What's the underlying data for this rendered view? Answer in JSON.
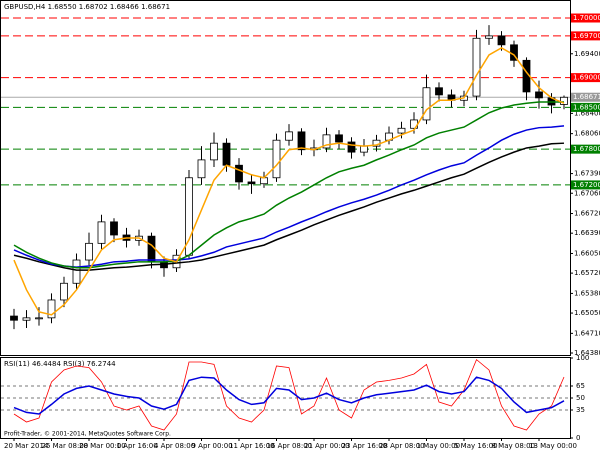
{
  "chart_data": [
    {
      "type": "candlestick",
      "title": "GBPUSD,H4  1.68550 1.68702 1.68466 1.68671",
      "footer": "Profit-Trader, © 2001-2014, MetaQuotes Software Corp.",
      "categories": [
        "20 Mar 2014",
        null,
        null,
        "25 Mar 08:00",
        null,
        null,
        "28 Mar 00:00",
        null,
        null,
        "1 Apr 16:00",
        null,
        null,
        "4 Apr 08:00",
        null,
        null,
        "9 Apr 00:00",
        null,
        null,
        "11 Apr 16:00",
        null,
        null,
        "16 Apr 08:00",
        null,
        null,
        "21 Apr 00:00",
        null,
        null,
        "23 Apr 16:00",
        null,
        null,
        "28 Apr 08:00",
        null,
        null,
        "1 May 00:00",
        null,
        null,
        "5 May 16:00",
        null,
        null,
        "8 May 08:00",
        null,
        null,
        "13 May 00:00",
        null,
        null
      ],
      "open": [
        1.65,
        1.6493,
        1.6497,
        1.6497,
        1.6527,
        1.6555,
        1.6594,
        1.6622,
        1.6658,
        1.6636,
        1.6627,
        1.6634,
        1.6591,
        1.6581,
        1.6602,
        1.6732,
        1.6762,
        1.679,
        1.6753,
        1.6725,
        1.6722,
        1.6732,
        1.6795,
        1.6809,
        1.6779,
        1.6782,
        1.6804,
        1.6792,
        1.6775,
        1.6785,
        1.6795,
        1.6807,
        1.6815,
        1.6829,
        1.6883,
        1.6871,
        1.6862,
        1.6869,
        1.6966,
        1.697,
        1.6955,
        1.6929,
        1.6876,
        1.6866,
        1.6855
      ],
      "high": [
        1.6512,
        1.651,
        1.6515,
        1.6538,
        1.6566,
        1.6605,
        1.664,
        1.667,
        1.6664,
        1.6648,
        1.6645,
        1.664,
        1.66,
        1.6612,
        1.6745,
        1.6785,
        1.6808,
        1.6798,
        1.6765,
        1.6738,
        1.6742,
        1.6806,
        1.6822,
        1.6815,
        1.6796,
        1.6816,
        1.6812,
        1.68,
        1.6797,
        1.6804,
        1.6818,
        1.6826,
        1.6842,
        1.6905,
        1.6892,
        1.688,
        1.6878,
        1.698,
        1.6988,
        1.6978,
        1.6962,
        1.6934,
        1.6895,
        1.6874,
        1.687
      ],
      "low": [
        1.6478,
        1.648,
        1.6484,
        1.6488,
        1.6515,
        1.6544,
        1.6585,
        1.6612,
        1.6624,
        1.6615,
        1.6618,
        1.658,
        1.6566,
        1.6574,
        1.6596,
        1.672,
        1.675,
        1.6742,
        1.6712,
        1.6705,
        1.6715,
        1.6725,
        1.6786,
        1.677,
        1.6768,
        1.6775,
        1.678,
        1.6764,
        1.6768,
        1.6776,
        1.6788,
        1.6798,
        1.6806,
        1.6822,
        1.686,
        1.685,
        1.6852,
        1.6862,
        1.6955,
        1.6945,
        1.6918,
        1.6862,
        1.6848,
        1.684,
        1.6847
      ],
      "close": [
        1.6493,
        1.6497,
        1.6497,
        1.6527,
        1.6555,
        1.6594,
        1.6622,
        1.6658,
        1.6636,
        1.6627,
        1.6634,
        1.6591,
        1.6581,
        1.6602,
        1.6732,
        1.6762,
        1.679,
        1.6753,
        1.6725,
        1.6722,
        1.6732,
        1.6795,
        1.6809,
        1.6779,
        1.6782,
        1.6804,
        1.6792,
        1.6775,
        1.6785,
        1.6795,
        1.6807,
        1.6815,
        1.6829,
        1.6883,
        1.6871,
        1.6862,
        1.6869,
        1.6966,
        1.697,
        1.6955,
        1.6929,
        1.6876,
        1.6866,
        1.6854,
        1.6867
      ],
      "series": [
        {
          "color": "#000000",
          "values": [
            1.6602,
            1.6597,
            1.6591,
            1.6586,
            1.6581,
            1.6577,
            1.6577,
            1.6579,
            1.6581,
            1.6582,
            1.6584,
            1.6586,
            1.6587,
            1.6589,
            1.6591,
            1.6594,
            1.6599,
            1.6604,
            1.6609,
            1.6614,
            1.6619,
            1.6628,
            1.6636,
            1.6644,
            1.6653,
            1.6661,
            1.6669,
            1.6676,
            1.6683,
            1.6691,
            1.6698,
            1.6705,
            1.6711,
            1.6718,
            1.6725,
            1.6732,
            1.6738,
            1.6748,
            1.6758,
            1.6767,
            1.6775,
            1.6782,
            1.6785,
            1.6789,
            1.679
          ]
        },
        {
          "color": "#0000dd",
          "values": [
            1.6611,
            1.6602,
            1.6594,
            1.6587,
            1.6584,
            1.6582,
            1.6584,
            1.6587,
            1.6591,
            1.6592,
            1.6594,
            1.6594,
            1.6594,
            1.6594,
            1.6596,
            1.6601,
            1.6607,
            1.6616,
            1.6621,
            1.6626,
            1.6631,
            1.6641,
            1.6649,
            1.6658,
            1.6666,
            1.6675,
            1.6683,
            1.669,
            1.6696,
            1.6703,
            1.6711,
            1.672,
            1.6728,
            1.6737,
            1.6745,
            1.6752,
            1.6757,
            1.677,
            1.6782,
            1.6795,
            1.6805,
            1.6812,
            1.6816,
            1.6817,
            1.6819
          ]
        },
        {
          "color": "#008000",
          "values": [
            1.6619,
            1.6607,
            1.6597,
            1.6589,
            1.6584,
            1.6581,
            1.6581,
            1.6584,
            1.6587,
            1.6589,
            1.6591,
            1.6591,
            1.6591,
            1.6592,
            1.6602,
            1.6619,
            1.6636,
            1.6648,
            1.6658,
            1.6664,
            1.6671,
            1.6686,
            1.6698,
            1.6708,
            1.672,
            1.6732,
            1.6742,
            1.6748,
            1.6753,
            1.6762,
            1.677,
            1.6779,
            1.6787,
            1.6799,
            1.6807,
            1.6812,
            1.6817,
            1.6829,
            1.6841,
            1.6849,
            1.6854,
            1.6857,
            1.6859,
            1.6859,
            1.6859
          ]
        },
        {
          "color": "#ffa500",
          "values": [
            1.6594,
            1.6544,
            1.6507,
            1.6502,
            1.6519,
            1.6544,
            1.6577,
            1.6611,
            1.6628,
            1.6631,
            1.6631,
            1.6619,
            1.6597,
            1.6591,
            1.6628,
            1.6678,
            1.6728,
            1.6753,
            1.6745,
            1.6737,
            1.6732,
            1.6753,
            1.6779,
            1.6782,
            1.6779,
            1.6787,
            1.679,
            1.6787,
            1.6785,
            1.6787,
            1.6795,
            1.6804,
            1.6812,
            1.6846,
            1.6862,
            1.6862,
            1.6866,
            1.6904,
            1.6938,
            1.695,
            1.6938,
            1.6909,
            1.6883,
            1.6866,
            1.6857
          ]
        }
      ],
      "levels": [
        {
          "value": 1.7,
          "label": "1.70000",
          "color": "#ff0000"
        },
        {
          "value": 1.697,
          "label": "1.69700",
          "color": "#ff0000"
        },
        {
          "value": 1.69,
          "label": "1.69000",
          "color": "#ff0000"
        },
        {
          "value": 1.685,
          "label": "1.68500",
          "color": "#008000"
        },
        {
          "value": 1.678,
          "label": "1.67800",
          "color": "#008000"
        },
        {
          "value": 1.672,
          "label": "1.67200",
          "color": "#008000"
        }
      ],
      "current_price": 1.68671,
      "ylim": [
        1.6433,
        1.70302
      ],
      "yticks": [
        {
          "value": 1.6438,
          "label": "1.64380"
        },
        {
          "value": 1.6471,
          "label": "1.64710"
        },
        {
          "value": 1.6505,
          "label": "1.65050"
        },
        {
          "value": 1.6538,
          "label": "1.65380"
        },
        {
          "value": 1.6572,
          "label": "1.65720"
        },
        {
          "value": 1.6605,
          "label": "1.66050"
        },
        {
          "value": 1.6639,
          "label": "1.66390"
        },
        {
          "value": 1.6672,
          "label": "1.66720"
        },
        {
          "value": 1.6706,
          "label": "1.67060"
        },
        {
          "value": 1.6739,
          "label": "1.67390"
        },
        {
          "value": 1.6806,
          "label": "1.68060"
        },
        {
          "value": 1.684,
          "label": "1.68400"
        },
        {
          "value": 1.694,
          "label": "1.69400"
        }
      ]
    },
    {
      "type": "line",
      "title": "RSI(11) 46.4484 RSI(3) 76.2744",
      "series": [
        {
          "color": "#ff0000",
          "values": [
            30,
            20,
            25,
            70,
            85,
            90,
            88,
            70,
            40,
            35,
            40,
            15,
            10,
            30,
            95,
            95,
            92,
            40,
            25,
            20,
            35,
            90,
            88,
            30,
            40,
            75,
            35,
            25,
            60,
            70,
            72,
            75,
            80,
            92,
            45,
            40,
            60,
            98,
            85,
            40,
            15,
            10,
            30,
            40,
            76.2744
          ]
        },
        {
          "color": "#0000dd",
          "values": [
            38,
            32,
            30,
            42,
            55,
            62,
            65,
            60,
            55,
            52,
            50,
            40,
            36,
            42,
            72,
            76,
            75,
            60,
            48,
            42,
            44,
            62,
            60,
            48,
            50,
            56,
            48,
            44,
            50,
            54,
            56,
            58,
            60,
            66,
            58,
            55,
            58,
            76,
            72,
            62,
            45,
            32,
            35,
            38,
            46.4484
          ]
        }
      ],
      "ylim": [
        0,
        100
      ],
      "yticks": [
        0,
        35,
        50,
        65,
        100
      ],
      "levels": [
        35,
        50,
        65
      ]
    }
  ]
}
